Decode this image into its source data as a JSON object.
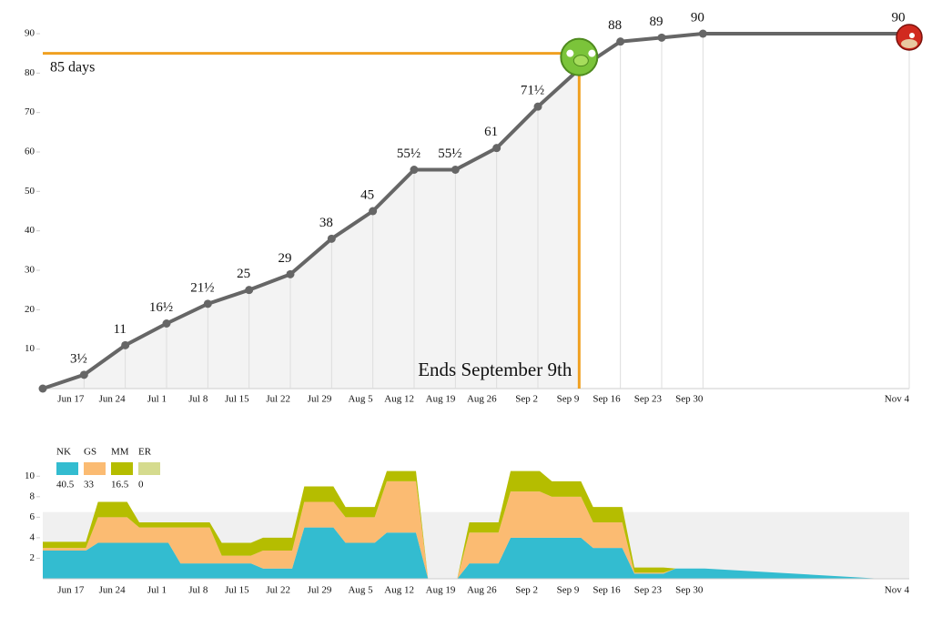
{
  "chart_data": [
    {
      "type": "line",
      "x": [
        null,
        "Jun 17",
        "Jun 24",
        "Jul 1",
        "Jul 8",
        "Jul 15",
        "Jul 22",
        "Jul 29",
        "Aug 5",
        "Aug 12",
        "Aug 19",
        "Aug 26",
        "Sep 2",
        "Sep 9",
        "Sep 16",
        "Sep 23",
        "Sep 30",
        "Nov 4"
      ],
      "values": [
        0,
        3.5,
        11,
        16.5,
        21.5,
        25,
        29,
        38,
        45,
        55.5,
        55.5,
        61,
        71.5,
        81,
        88,
        89,
        90,
        90
      ],
      "value_labels": [
        null,
        "3½",
        "11",
        "16½",
        "21½",
        "25",
        "29",
        "38",
        "45",
        "55½",
        "55½",
        "61",
        "71½",
        null,
        "88",
        "89",
        "90",
        "90"
      ],
      "color": "#666666",
      "ylim": [
        0,
        90
      ],
      "yticks": [
        10,
        20,
        30,
        40,
        50,
        60,
        70,
        80,
        90
      ],
      "annotations": [
        {
          "text": "85 days",
          "value": 85,
          "color": "#f0a020"
        },
        {
          "text": "Ends September 9th",
          "x": "Sep 9",
          "color": "#f0a020"
        }
      ]
    },
    {
      "type": "stacked_area",
      "x": [
        null,
        "Jun 17",
        "Jun 24",
        "Jul 1",
        "Jul 8",
        "Jul 15",
        "Jul 22",
        "Jul 29",
        "Aug 5",
        "Aug 12",
        "Aug 19",
        "Aug 26",
        "Sep 2",
        "Sep 9",
        "Sep 16",
        "Sep 23",
        "Sep 30",
        "Nov 4"
      ],
      "series": [
        {
          "name": "NK",
          "color": "#33bcd0",
          "total": 40.5,
          "values": [
            2.75,
            2.75,
            3.5,
            3.5,
            1.5,
            1.5,
            1,
            5,
            3.5,
            4.5,
            0,
            1.5,
            4,
            4,
            3,
            0.5,
            1,
            0
          ]
        },
        {
          "name": "GS",
          "color": "#fbbb72",
          "total": 33,
          "values": [
            0.25,
            0.25,
            2.5,
            1.5,
            3.5,
            0.75,
            1.75,
            2.5,
            2.5,
            5,
            0,
            3,
            4.5,
            4,
            2.5,
            0.1,
            0,
            0
          ]
        },
        {
          "name": "MM",
          "color": "#b5bd00",
          "total": 16.5,
          "values": [
            0.6,
            0.6,
            1.5,
            0.5,
            0.5,
            1.25,
            1.25,
            1.5,
            1,
            1,
            0,
            1,
            2,
            1.5,
            1.5,
            0.5,
            0,
            0
          ]
        },
        {
          "name": "ER",
          "color": "#d5db8e",
          "total": 0,
          "values": [
            0,
            0,
            0,
            0,
            0,
            0,
            0,
            0,
            0,
            0,
            0,
            0,
            0,
            0,
            0,
            0,
            0,
            0
          ]
        }
      ],
      "ylim": [
        0,
        11
      ],
      "yticks": [
        2,
        4,
        6,
        8,
        10
      ],
      "reference_band": 6.5
    }
  ]
}
